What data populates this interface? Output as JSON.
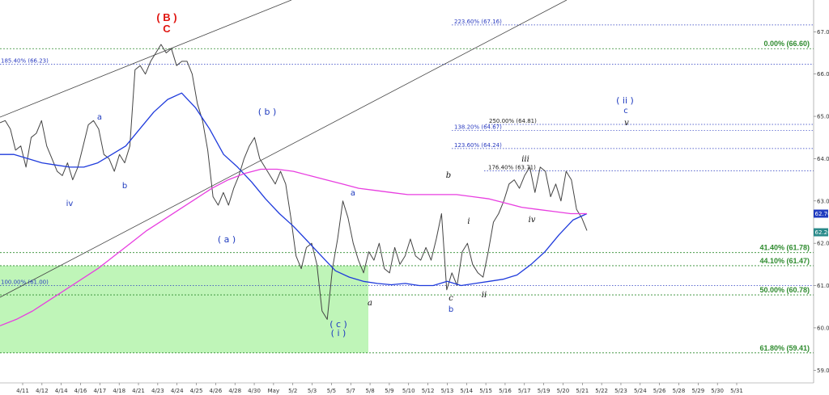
{
  "chart_data": {
    "type": "line",
    "y_range": [
      58.7,
      67.75
    ],
    "x_date_labels": [
      "4/11",
      "4/12",
      "4/14",
      "4/16",
      "4/17",
      "4/18",
      "4/21",
      "4/23",
      "4/24",
      "4/25",
      "4/26",
      "4/28",
      "4/30",
      "May",
      "5/2",
      "5/3",
      "5/5",
      "5/7",
      "5/8",
      "5/9",
      "5/10",
      "5/12",
      "5/13",
      "5/14",
      "5/15",
      "5/16",
      "5/17",
      "5/19",
      "5/20",
      "5/21",
      "5/22",
      "5/23",
      "5/24",
      "5/26",
      "5/28",
      "5/29",
      "5/30",
      "5/31"
    ],
    "y_ticks": [
      "67.00",
      "66.00",
      "65.00",
      "64.00",
      "63.00",
      "62.00",
      "61.00",
      "60.00",
      "59.00"
    ],
    "price_badges": [
      {
        "label": "62.70",
        "value": 62.7,
        "color": "#1f3bbf"
      },
      {
        "label": "62.26",
        "value": 62.26,
        "color": "#2a8a8a"
      }
    ],
    "fib_levels": [
      {
        "label": "0.00% (66.60)",
        "value": 66.6
      },
      {
        "label": "41.40% (61.78)",
        "value": 61.78
      },
      {
        "label": "44.10% (61.47)",
        "value": 61.47
      },
      {
        "label": "50.00% (60.78)",
        "value": 60.78
      },
      {
        "label": "61.80% (59.41)",
        "value": 59.41
      }
    ],
    "extension_levels": [
      {
        "label": "223.60% (67.16)",
        "value": 67.16,
        "color": "#2a3bc0"
      },
      {
        "label": "185.40% (66.23)",
        "value": 66.23,
        "color": "#2a3bc0"
      },
      {
        "label": "250.00% (64.81)",
        "value": 64.81,
        "color": "#222"
      },
      {
        "label": "138.20% (64.67)",
        "value": 64.67,
        "color": "#2a3bc0"
      },
      {
        "label": "123.60% (64.24)",
        "value": 64.24,
        "color": "#2a3bc0"
      },
      {
        "label": "176.40% (63.71)",
        "value": 63.71,
        "color": "#222"
      },
      {
        "label": "100.00% (61.00)",
        "value": 61.0,
        "color": "#2a3bc0"
      }
    ],
    "wave_labels": [
      {
        "text": "( B )",
        "style": "red"
      },
      {
        "text": "C",
        "style": "red"
      },
      {
        "text": "( b )",
        "style": "blue"
      },
      {
        "text": "( a )",
        "style": "blue"
      },
      {
        "text": "( c )",
        "style": "blue"
      },
      {
        "text": "( i )",
        "style": "blue"
      },
      {
        "text": "( ii )",
        "style": "blue"
      },
      {
        "text": "c",
        "style": "blue"
      },
      {
        "text": "v",
        "style": "black"
      },
      {
        "text": "a",
        "style": "blue"
      },
      {
        "text": "b",
        "style": "blue"
      },
      {
        "text": "iv",
        "style": "blue"
      },
      {
        "text": "a",
        "style": "blue"
      },
      {
        "text": "a",
        "style": "black"
      },
      {
        "text": "b",
        "style": "black"
      },
      {
        "text": "c",
        "style": "black"
      },
      {
        "text": "b",
        "style": "blue"
      },
      {
        "text": "i",
        "style": "black"
      },
      {
        "text": "ii",
        "style": "black"
      },
      {
        "text": "iii",
        "style": "black"
      },
      {
        "text": "iv",
        "style": "black"
      }
    ],
    "series": [
      {
        "kind": "price",
        "color": "#444444",
        "values": [
          64.85,
          64.9,
          64.7,
          64.2,
          64.3,
          63.8,
          64.5,
          64.6,
          64.9,
          64.3,
          64.0,
          63.7,
          63.6,
          63.9,
          63.5,
          63.8,
          64.3,
          64.8,
          64.9,
          64.7,
          64.1,
          64.0,
          63.7,
          64.1,
          63.9,
          64.3,
          66.1,
          66.2,
          66.0,
          66.3,
          66.5,
          66.7,
          66.5,
          66.6,
          66.2,
          66.3,
          66.3,
          66.0,
          65.3,
          64.9,
          64.2,
          63.1,
          62.9,
          63.2,
          62.9,
          63.3,
          63.6,
          64.0,
          64.3,
          64.5,
          64.0,
          63.8,
          63.6,
          63.4,
          63.7,
          63.4,
          62.6,
          61.7,
          61.4,
          61.9,
          62.0,
          61.5,
          60.4,
          60.2,
          61.4,
          62.1,
          63.0,
          62.6,
          62.0,
          61.6,
          61.3,
          61.8,
          61.6,
          62.0,
          61.4,
          61.3,
          61.9,
          61.5,
          61.7,
          62.1,
          61.7,
          61.6,
          61.9,
          61.6,
          62.1,
          62.7,
          60.9,
          61.3,
          61.0,
          61.8,
          62.0,
          61.5,
          61.3,
          61.2,
          61.8,
          62.5,
          62.7,
          63.0,
          63.4,
          63.5,
          63.3,
          63.6,
          63.8,
          63.2,
          63.8,
          63.7,
          63.1,
          63.4,
          63.0,
          63.7,
          63.5,
          62.8,
          62.6,
          62.3
        ]
      },
      {
        "kind": "moving-average",
        "color": "#1f3bdc",
        "values": [
          64.1,
          64.1,
          64.0,
          63.9,
          63.85,
          63.8,
          63.8,
          63.9,
          64.1,
          64.3,
          64.7,
          65.1,
          65.4,
          65.55,
          65.2,
          64.7,
          64.1,
          63.8,
          63.45,
          63.05,
          62.7,
          62.4,
          62.05,
          61.7,
          61.35,
          61.2,
          61.1,
          61.05,
          61.02,
          61.05,
          61.0,
          61.0,
          61.1,
          61.0,
          61.05,
          61.1,
          61.15,
          61.25,
          61.5,
          61.8,
          62.2,
          62.55,
          62.7
        ]
      },
      {
        "kind": "moving-average",
        "color": "#e83ee0",
        "values": [
          60.05,
          60.2,
          60.4,
          60.65,
          60.9,
          61.15,
          61.4,
          61.7,
          62.0,
          62.3,
          62.55,
          62.8,
          63.05,
          63.3,
          63.5,
          63.65,
          63.75,
          63.75,
          63.7,
          63.6,
          63.5,
          63.4,
          63.3,
          63.25,
          63.2,
          63.15,
          63.15,
          63.15,
          63.15,
          63.1,
          63.05,
          62.95,
          62.85,
          62.8,
          62.75,
          62.7,
          62.7
        ]
      }
    ],
    "trend_lines": 2,
    "highlight_zone": {
      "y_top": 61.47,
      "y_bottom": 59.41,
      "color": "#b8f4b0"
    },
    "grid": false
  }
}
